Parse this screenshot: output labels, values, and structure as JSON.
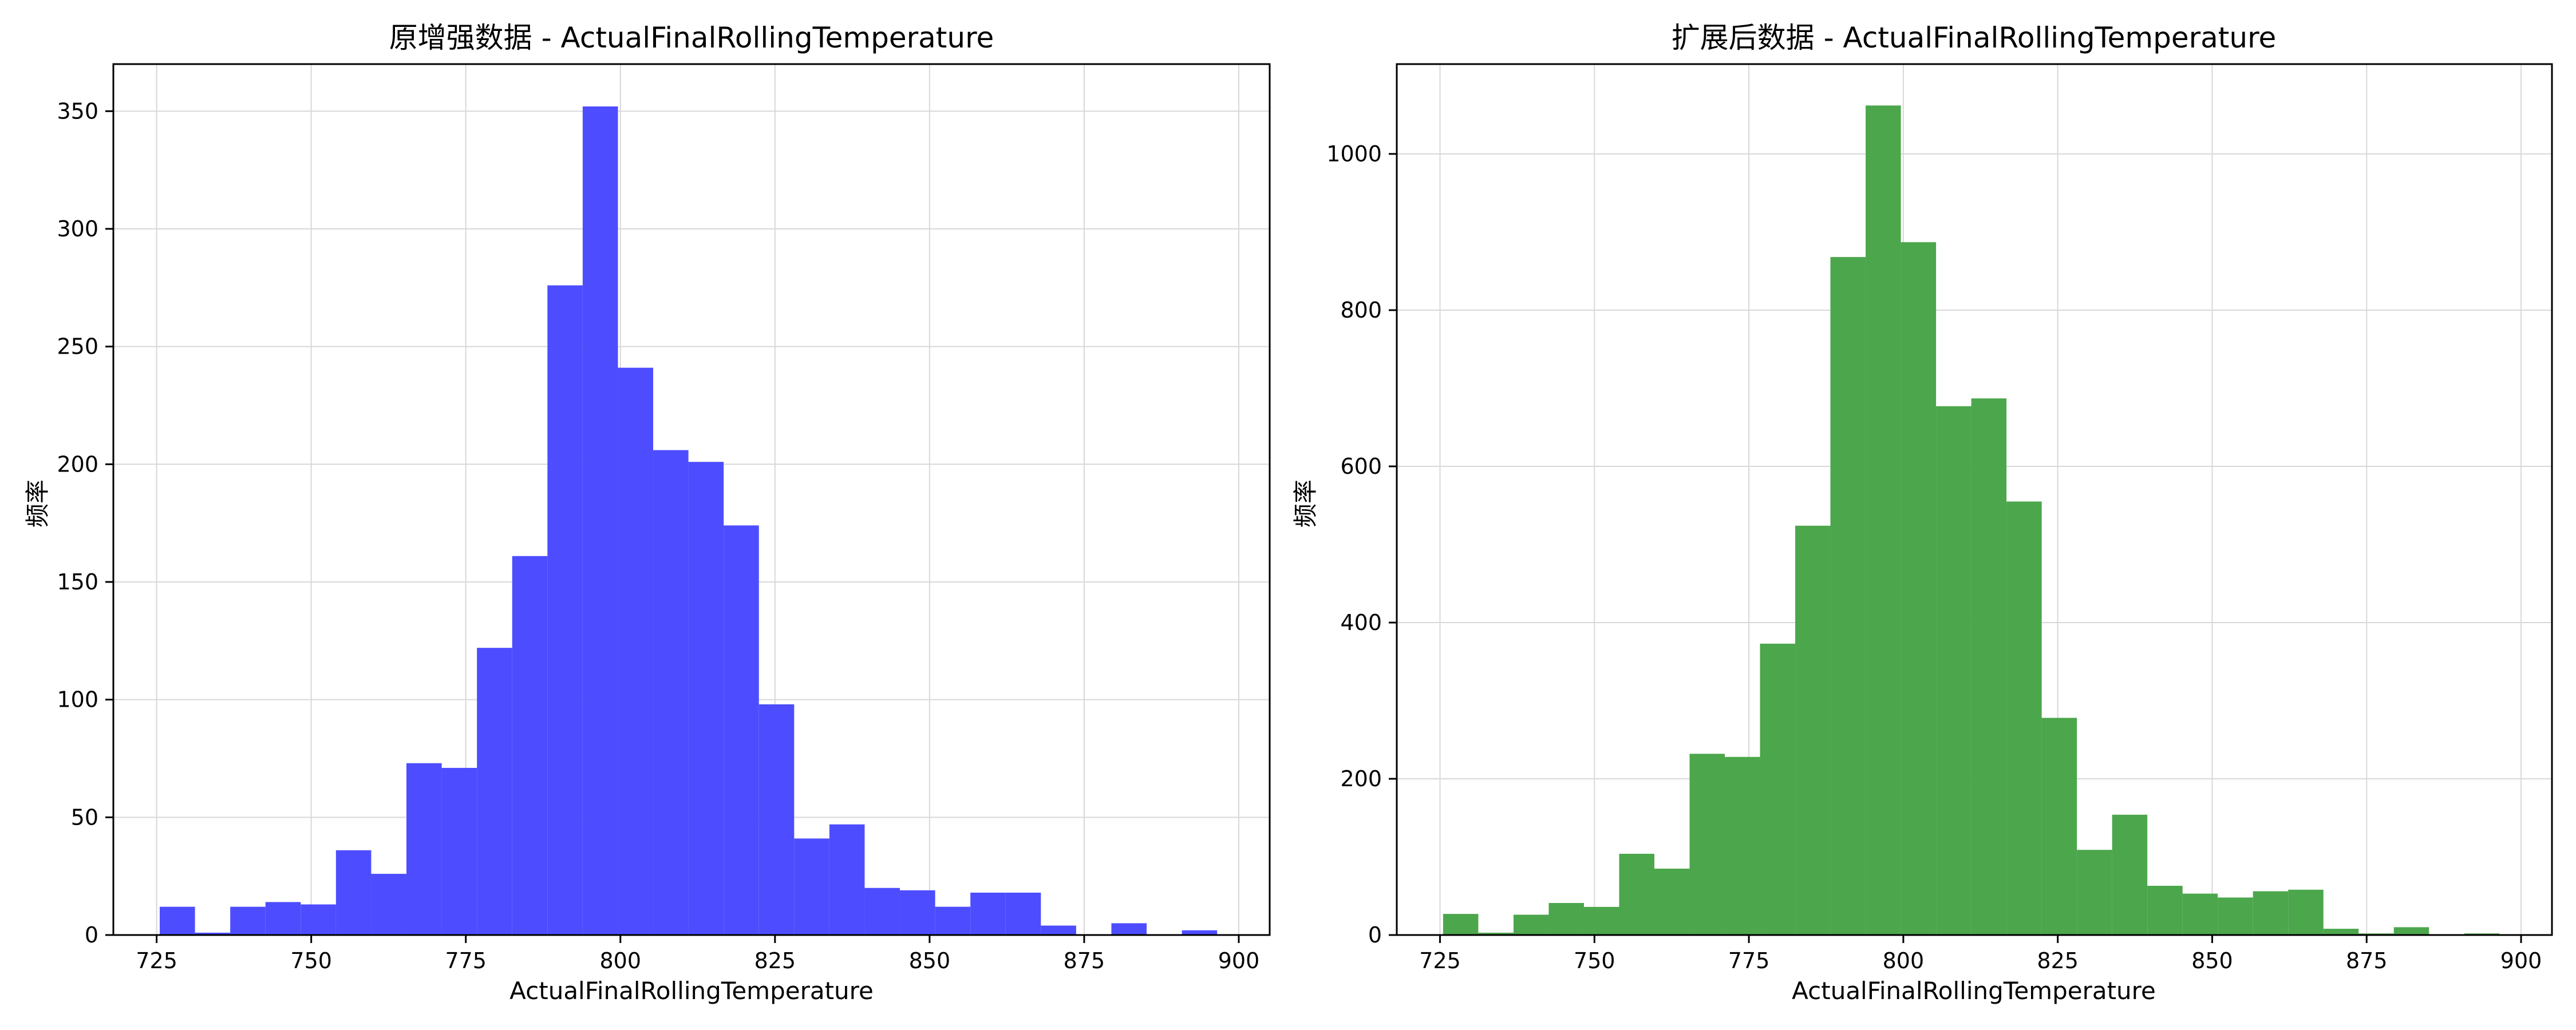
{
  "chart_data": [
    {
      "type": "histogram",
      "title": "原增强数据 - ActualFinalRollingTemperature",
      "xlabel": "ActualFinalRollingTemperature",
      "ylabel": "频率",
      "xlim": [
        718,
        905
      ],
      "ylim": [
        0,
        370
      ],
      "xticks": [
        725,
        750,
        775,
        800,
        825,
        850,
        875,
        900
      ],
      "yticks": [
        0,
        50,
        100,
        150,
        200,
        250,
        300,
        350
      ],
      "grid": true,
      "color": "#4d4dff",
      "bins": [
        {
          "x0": 725.5,
          "x1": 731.2,
          "count": 12
        },
        {
          "x0": 731.2,
          "x1": 736.9,
          "count": 1
        },
        {
          "x0": 736.9,
          "x1": 742.6,
          "count": 12
        },
        {
          "x0": 742.6,
          "x1": 748.3,
          "count": 14
        },
        {
          "x0": 748.3,
          "x1": 754.0,
          "count": 13
        },
        {
          "x0": 754.0,
          "x1": 759.7,
          "count": 36
        },
        {
          "x0": 759.7,
          "x1": 765.4,
          "count": 26
        },
        {
          "x0": 765.4,
          "x1": 771.1,
          "count": 73
        },
        {
          "x0": 771.1,
          "x1": 776.8,
          "count": 71
        },
        {
          "x0": 776.8,
          "x1": 782.5,
          "count": 122
        },
        {
          "x0": 782.5,
          "x1": 788.2,
          "count": 161
        },
        {
          "x0": 788.2,
          "x1": 793.9,
          "count": 276
        },
        {
          "x0": 793.9,
          "x1": 799.6,
          "count": 352
        },
        {
          "x0": 799.6,
          "x1": 805.3,
          "count": 241
        },
        {
          "x0": 805.3,
          "x1": 811.0,
          "count": 206
        },
        {
          "x0": 811.0,
          "x1": 816.7,
          "count": 201
        },
        {
          "x0": 816.7,
          "x1": 822.4,
          "count": 174
        },
        {
          "x0": 822.4,
          "x1": 828.1,
          "count": 98
        },
        {
          "x0": 828.1,
          "x1": 833.8,
          "count": 41
        },
        {
          "x0": 833.8,
          "x1": 839.5,
          "count": 47
        },
        {
          "x0": 839.5,
          "x1": 845.2,
          "count": 20
        },
        {
          "x0": 845.2,
          "x1": 850.9,
          "count": 19
        },
        {
          "x0": 850.9,
          "x1": 856.6,
          "count": 12
        },
        {
          "x0": 856.6,
          "x1": 862.3,
          "count": 18
        },
        {
          "x0": 862.3,
          "x1": 868.0,
          "count": 18
        },
        {
          "x0": 868.0,
          "x1": 873.7,
          "count": 4
        },
        {
          "x0": 873.7,
          "x1": 879.4,
          "count": 0
        },
        {
          "x0": 879.4,
          "x1": 885.1,
          "count": 5
        },
        {
          "x0": 885.1,
          "x1": 890.8,
          "count": 0
        },
        {
          "x0": 890.8,
          "x1": 896.5,
          "count": 2
        }
      ]
    },
    {
      "type": "histogram",
      "title": "扩展后数据 - ActualFinalRollingTemperature",
      "xlabel": "ActualFinalRollingTemperature",
      "ylabel": "频率",
      "xlim": [
        718,
        905
      ],
      "ylim": [
        0,
        1115
      ],
      "xticks": [
        725,
        750,
        775,
        800,
        825,
        850,
        875,
        900
      ],
      "yticks": [
        0,
        200,
        400,
        600,
        800,
        1000
      ],
      "grid": true,
      "color": "#4ca64c",
      "bins": [
        {
          "x0": 725.5,
          "x1": 731.2,
          "count": 27
        },
        {
          "x0": 731.2,
          "x1": 736.9,
          "count": 3
        },
        {
          "x0": 736.9,
          "x1": 742.6,
          "count": 26
        },
        {
          "x0": 742.6,
          "x1": 748.3,
          "count": 41
        },
        {
          "x0": 748.3,
          "x1": 754.0,
          "count": 36
        },
        {
          "x0": 754.0,
          "x1": 759.7,
          "count": 104
        },
        {
          "x0": 759.7,
          "x1": 765.4,
          "count": 85
        },
        {
          "x0": 765.4,
          "x1": 771.1,
          "count": 232
        },
        {
          "x0": 771.1,
          "x1": 776.8,
          "count": 228
        },
        {
          "x0": 776.8,
          "x1": 782.5,
          "count": 373
        },
        {
          "x0": 782.5,
          "x1": 788.2,
          "count": 524
        },
        {
          "x0": 788.2,
          "x1": 793.9,
          "count": 868
        },
        {
          "x0": 793.9,
          "x1": 799.6,
          "count": 1062
        },
        {
          "x0": 799.6,
          "x1": 805.3,
          "count": 887
        },
        {
          "x0": 805.3,
          "x1": 811.0,
          "count": 677
        },
        {
          "x0": 811.0,
          "x1": 816.7,
          "count": 687
        },
        {
          "x0": 816.7,
          "x1": 822.4,
          "count": 555
        },
        {
          "x0": 822.4,
          "x1": 828.1,
          "count": 278
        },
        {
          "x0": 828.1,
          "x1": 833.8,
          "count": 109
        },
        {
          "x0": 833.8,
          "x1": 839.5,
          "count": 154
        },
        {
          "x0": 839.5,
          "x1": 845.2,
          "count": 63
        },
        {
          "x0": 845.2,
          "x1": 850.9,
          "count": 53
        },
        {
          "x0": 850.9,
          "x1": 856.6,
          "count": 48
        },
        {
          "x0": 856.6,
          "x1": 862.3,
          "count": 56
        },
        {
          "x0": 862.3,
          "x1": 868.0,
          "count": 58
        },
        {
          "x0": 868.0,
          "x1": 873.7,
          "count": 8
        },
        {
          "x0": 873.7,
          "x1": 879.4,
          "count": 2
        },
        {
          "x0": 879.4,
          "x1": 885.1,
          "count": 10
        },
        {
          "x0": 885.1,
          "x1": 890.8,
          "count": 0
        },
        {
          "x0": 890.8,
          "x1": 896.5,
          "count": 2
        }
      ]
    }
  ]
}
